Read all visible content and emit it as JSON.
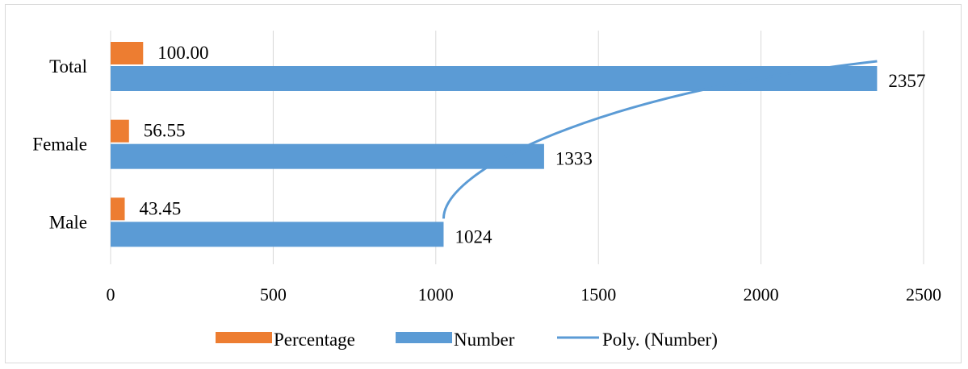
{
  "chart_data": {
    "type": "bar",
    "orientation": "horizontal",
    "categories": [
      "Total",
      "Female",
      "Male"
    ],
    "series": [
      {
        "name": "Percentage",
        "values": [
          100.0,
          56.55,
          43.45
        ],
        "labels": [
          "100.00",
          "56.55",
          "43.45"
        ],
        "color": "#ED7D31"
      },
      {
        "name": "Number",
        "values": [
          2357,
          1333,
          1024
        ],
        "labels": [
          "2357",
          "1333",
          "1024"
        ],
        "color": "#5B9BD5"
      }
    ],
    "trendline": {
      "name": "Poly. (Number)",
      "type": "polynomial",
      "series": "Number",
      "color": "#5B9BD5"
    },
    "x_ticks": [
      "0",
      "500",
      "1000",
      "1500",
      "2000",
      "2500"
    ],
    "xlim": [
      0,
      2500
    ],
    "grid": "vertical",
    "legend_position": "bottom"
  }
}
